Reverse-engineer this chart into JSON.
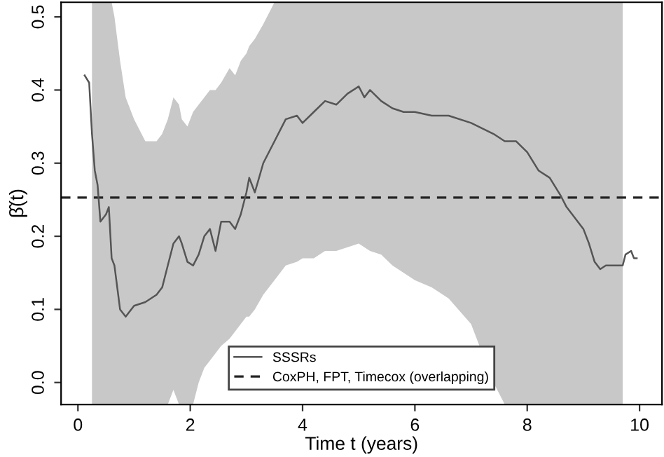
{
  "chart_data": {
    "type": "line",
    "xlabel": "Time t (years)",
    "ylabel": "β̂(t)",
    "xlim": [
      -0.3,
      10.4
    ],
    "ylim": [
      -0.03,
      0.52
    ],
    "xticks": [
      0,
      2,
      4,
      6,
      8,
      10
    ],
    "yticks": [
      {
        "value": 0,
        "label": "0.0"
      },
      0.1,
      0.2,
      0.3,
      0.4,
      0.5
    ],
    "grid": false,
    "legend": "bottom",
    "marker": "none",
    "series": [
      {
        "name": "SSSRs",
        "color": "#555555",
        "line_style": "solid",
        "x": [
          0.12,
          0.2,
          0.25,
          0.3,
          0.35,
          0.4,
          0.5,
          0.55,
          0.6,
          0.65,
          0.7,
          0.75,
          0.85,
          1.0,
          1.2,
          1.4,
          1.5,
          1.6,
          1.7,
          1.8,
          1.85,
          1.95,
          2.05,
          2.15,
          2.25,
          2.35,
          2.45,
          2.55,
          2.7,
          2.8,
          2.9,
          3.0,
          3.05,
          3.15,
          3.3,
          3.5,
          3.7,
          3.9,
          4.0,
          4.2,
          4.4,
          4.6,
          4.8,
          5.0,
          5.1,
          5.2,
          5.4,
          5.6,
          5.8,
          6.0,
          6.3,
          6.6,
          7.0,
          7.4,
          7.6,
          7.8,
          8.0,
          8.2,
          8.4,
          8.6,
          8.7,
          8.8,
          9.0,
          9.1,
          9.2,
          9.3,
          9.4,
          9.5,
          9.7,
          9.75,
          9.85,
          9.9,
          9.95
        ],
        "values": [
          0.42,
          0.41,
          0.34,
          0.29,
          0.27,
          0.22,
          0.23,
          0.24,
          0.17,
          0.16,
          0.13,
          0.1,
          0.09,
          0.105,
          0.11,
          0.12,
          0.13,
          0.16,
          0.19,
          0.2,
          0.19,
          0.165,
          0.16,
          0.175,
          0.2,
          0.21,
          0.18,
          0.22,
          0.22,
          0.21,
          0.23,
          0.26,
          0.28,
          0.26,
          0.3,
          0.33,
          0.36,
          0.365,
          0.355,
          0.37,
          0.385,
          0.38,
          0.395,
          0.405,
          0.39,
          0.4,
          0.385,
          0.375,
          0.37,
          0.37,
          0.365,
          0.365,
          0.355,
          0.34,
          0.33,
          0.33,
          0.315,
          0.29,
          0.28,
          0.255,
          0.24,
          0.23,
          0.21,
          0.19,
          0.165,
          0.155,
          0.16,
          0.16,
          0.16,
          0.175,
          0.18,
          0.17,
          0.17
        ],
        "upper": [
          null,
          null,
          0.52,
          0.52,
          0.52,
          0.52,
          0.52,
          0.52,
          0.52,
          0.5,
          0.47,
          0.44,
          0.39,
          0.36,
          0.33,
          0.33,
          0.34,
          0.36,
          0.39,
          0.38,
          0.36,
          0.35,
          0.37,
          0.38,
          0.39,
          0.4,
          0.4,
          0.41,
          0.43,
          0.42,
          0.44,
          0.45,
          0.46,
          0.47,
          0.49,
          0.52,
          0.52,
          0.52,
          0.52,
          0.52,
          0.52,
          0.52,
          0.52,
          0.52,
          0.52,
          0.52,
          0.52,
          0.52,
          0.52,
          0.52,
          0.52,
          0.52,
          0.52,
          0.52,
          0.52,
          0.52,
          0.52,
          0.52,
          0.52,
          0.52,
          0.52,
          0.52,
          0.52,
          0.52,
          0.52,
          0.52,
          0.52,
          0.52,
          0.52,
          null,
          null,
          null,
          null
        ],
        "lower": [
          null,
          null,
          -0.03,
          -0.03,
          -0.03,
          -0.03,
          -0.03,
          -0.03,
          -0.03,
          -0.03,
          -0.03,
          -0.03,
          -0.03,
          -0.03,
          -0.03,
          -0.03,
          -0.03,
          -0.03,
          -0.01,
          -0.03,
          -0.03,
          -0.03,
          -0.03,
          0.0,
          0.02,
          0.03,
          0.04,
          0.05,
          0.06,
          0.07,
          0.08,
          0.09,
          0.09,
          0.1,
          0.12,
          0.14,
          0.16,
          0.165,
          0.17,
          0.17,
          0.18,
          0.18,
          0.185,
          0.19,
          0.185,
          0.18,
          0.175,
          0.16,
          0.15,
          0.14,
          0.13,
          0.115,
          0.08,
          0.0,
          -0.03,
          -0.03,
          -0.03,
          -0.03,
          -0.03,
          -0.03,
          -0.03,
          -0.03,
          -0.03,
          -0.03,
          -0.03,
          -0.03,
          -0.03,
          -0.03,
          -0.03,
          null,
          null,
          null,
          null
        ]
      }
    ],
    "ref_lines": [
      {
        "axis": "y",
        "value": 0.253,
        "label": "CoxPH, FPT, Timecox (overlapping)",
        "color": "#222222",
        "line_style": "dashed"
      }
    ]
  }
}
